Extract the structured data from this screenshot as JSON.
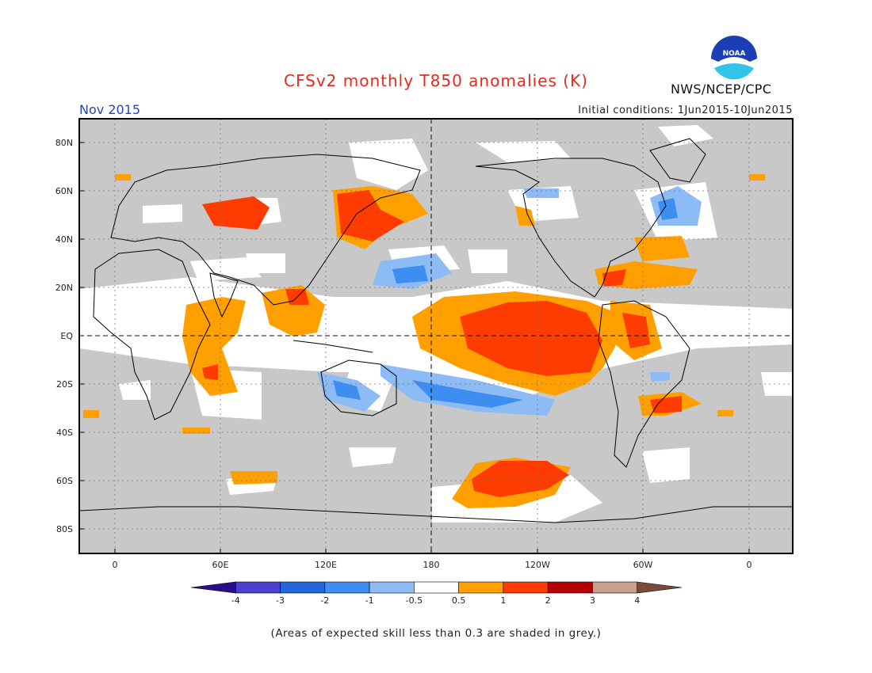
{
  "header": {
    "title": "CFSv2 monthly T850 anomalies (K)",
    "month": "Nov 2015",
    "initial_conditions": "Initial conditions: 1Jun2015-10Jun2015",
    "agency": "NWS/NCEP/CPC",
    "logo_text": "NOAA"
  },
  "map": {
    "projection": "cylindrical equidistant",
    "lon_range": [
      -20,
      380
    ],
    "lat_range": [
      -90,
      90
    ],
    "lat_ticks": [
      "80N",
      "60N",
      "40N",
      "20N",
      "EQ",
      "20S",
      "40S",
      "60S",
      "80S"
    ],
    "lon_ticks": [
      "0",
      "60E",
      "120E",
      "180",
      "120W",
      "60W",
      "0"
    ],
    "skill_mask_color": "#c8c8c8",
    "reference_lines": [
      "equator",
      "180 meridian"
    ]
  },
  "legend": {
    "thresholds": [
      "-4",
      "-3",
      "-2",
      "-1",
      "-0.5",
      "0.5",
      "1",
      "2",
      "3",
      "4"
    ],
    "colors": [
      "#2a0d8e",
      "#4a3fcf",
      "#2266dd",
      "#3c8ef0",
      "#8dbbf5",
      "#ffffff",
      "#ffa000",
      "#ff3c00",
      "#b40000",
      "#c9a090",
      "#7a4a3a"
    ]
  },
  "footnote": "(Areas of expected skill less than 0.3 are shaded in grey.)"
}
